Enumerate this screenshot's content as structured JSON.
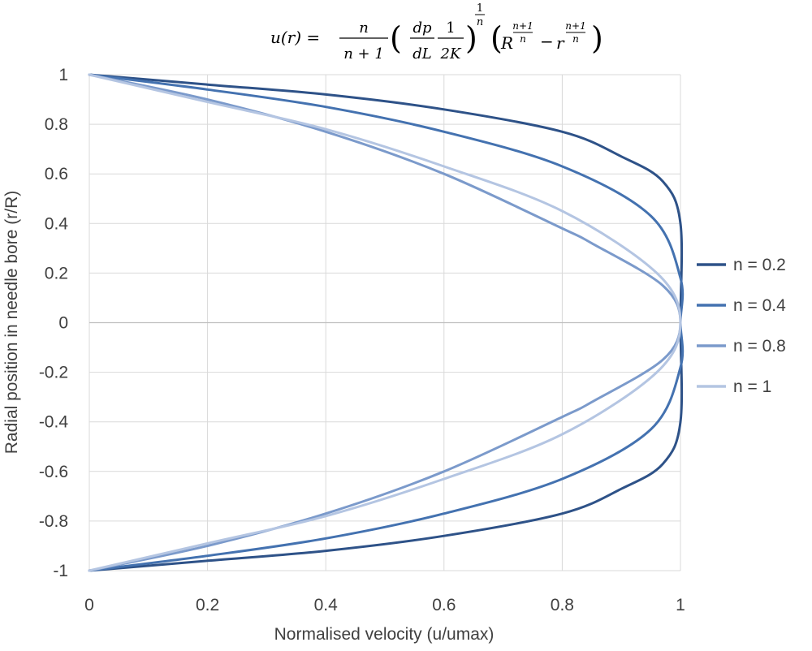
{
  "chart_data": {
    "type": "line",
    "title": "",
    "xlabel": "Normalised velocity (u/umax)",
    "ylabel": "Radial position in needle bore (r/R)",
    "xlim": [
      0,
      1
    ],
    "ylim": [
      -1,
      1
    ],
    "x_ticks": [
      "0",
      "0.2",
      "0.4",
      "0.6",
      "0.8",
      "1"
    ],
    "y_ticks": [
      "1",
      "0.8",
      "0.6",
      "0.4",
      "0.2",
      "0",
      "-0.2",
      "-0.4",
      "-0.6",
      "-0.8",
      "-1"
    ],
    "grid": true,
    "legend_position": "right",
    "series": [
      {
        "name": "n = 0.2",
        "color": "#2e5288",
        "points": [
          [
            1.0,
            -0.4
          ],
          [
            0.97,
            -0.57
          ],
          [
            0.9,
            -0.67
          ],
          [
            0.8,
            -0.77
          ],
          [
            0.6,
            -0.86
          ],
          [
            0.4,
            -0.92
          ],
          [
            0.2,
            -0.96
          ],
          [
            0.0,
            -1.0
          ]
        ]
      },
      {
        "name": "n = 0.4",
        "color": "#4472b0",
        "points": [
          [
            1.0,
            -0.18
          ],
          [
            0.95,
            -0.43
          ],
          [
            0.8,
            -0.63
          ],
          [
            0.6,
            -0.77
          ],
          [
            0.4,
            -0.87
          ],
          [
            0.2,
            -0.94
          ],
          [
            0.0,
            -1.0
          ]
        ]
      },
      {
        "name": "n = 0.8",
        "color": "#7b9acb",
        "points": [
          [
            0.97,
            -0.15
          ],
          [
            0.85,
            -0.32
          ],
          [
            0.8,
            -0.38
          ],
          [
            0.6,
            -0.6
          ],
          [
            0.4,
            -0.77
          ],
          [
            0.2,
            -0.9
          ],
          [
            0.0,
            -1.0
          ]
        ]
      },
      {
        "name": "n = 1",
        "color": "#b4c5e2",
        "points": [
          [
            0.96,
            -0.2
          ],
          [
            0.8,
            -0.45
          ],
          [
            0.6,
            -0.63
          ],
          [
            0.4,
            -0.78
          ],
          [
            0.2,
            -0.89
          ],
          [
            0.0,
            -1.0
          ]
        ]
      }
    ]
  },
  "equation": {
    "lhs": "u(r) =",
    "num": "n",
    "den": "n + 1",
    "dp_num": "dp",
    "dp_den": "dL",
    "k_num": "1",
    "k_den": "2K",
    "exp_num": "1",
    "exp_den": "n",
    "R": "R",
    "r": "r",
    "minus": "−",
    "pow_num": "n+1",
    "pow_den": "n"
  }
}
